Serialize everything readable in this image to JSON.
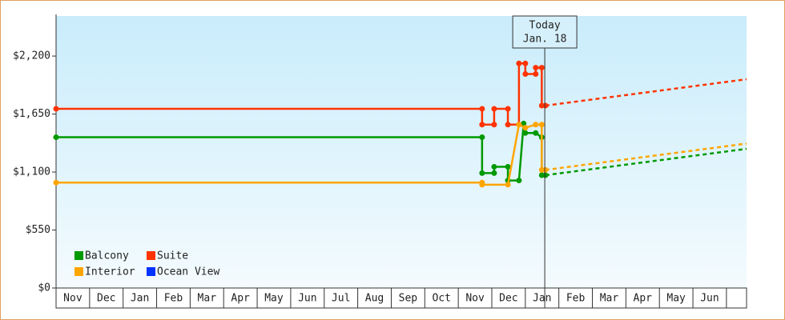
{
  "chart_data": {
    "type": "line",
    "ylim": [
      0,
      2580
    ],
    "yticks": [
      {
        "value": 0,
        "label": "$0"
      },
      {
        "value": 550,
        "label": "$550"
      },
      {
        "value": 1100,
        "label": "$1,100"
      },
      {
        "value": 1650,
        "label": "$1,650"
      },
      {
        "value": 2200,
        "label": "$2,200"
      }
    ],
    "xlim": [
      0,
      20.6
    ],
    "xticks": [
      {
        "value": 0.5,
        "label": "Nov"
      },
      {
        "value": 1.5,
        "label": "Dec"
      },
      {
        "value": 2.5,
        "label": "Jan"
      },
      {
        "value": 3.5,
        "label": "Feb"
      },
      {
        "value": 4.5,
        "label": "Mar"
      },
      {
        "value": 5.5,
        "label": "Apr"
      },
      {
        "value": 6.5,
        "label": "May"
      },
      {
        "value": 7.5,
        "label": "Jun"
      },
      {
        "value": 8.5,
        "label": "Jul"
      },
      {
        "value": 9.5,
        "label": "Aug"
      },
      {
        "value": 10.5,
        "label": "Sep"
      },
      {
        "value": 11.5,
        "label": "Oct"
      },
      {
        "value": 12.5,
        "label": "Nov"
      },
      {
        "value": 13.5,
        "label": "Dec"
      },
      {
        "value": 14.5,
        "label": "Jan"
      },
      {
        "value": 15.5,
        "label": "Feb"
      },
      {
        "value": 16.5,
        "label": "Mar"
      },
      {
        "value": 17.5,
        "label": "Apr"
      },
      {
        "value": 18.5,
        "label": "May"
      },
      {
        "value": 19.5,
        "label": "Jun"
      }
    ],
    "today": {
      "x": 14.58,
      "label": [
        "Today",
        "Jan. 18"
      ]
    },
    "series": [
      {
        "name": "Balcony",
        "color": "#009900",
        "x": [
          0,
          12.71,
          12.71,
          13.07,
          13.07,
          13.48,
          13.48,
          13.81,
          13.95,
          14.0,
          14.31,
          14.49,
          14.49,
          14.6
        ],
        "values": [
          1430,
          1430,
          1090,
          1090,
          1150,
          1150,
          1020,
          1020,
          1560,
          1470,
          1470,
          1430,
          1070,
          1070
        ],
        "forecast_x": [
          14.6,
          20.6
        ],
        "forecast_values": [
          1070,
          1320
        ]
      },
      {
        "name": "Suite",
        "color": "#ff3300",
        "x": [
          0,
          12.71,
          12.71,
          13.07,
          13.07,
          13.48,
          13.48,
          13.81,
          13.81,
          14.0,
          14.0,
          14.31,
          14.31,
          14.49,
          14.49,
          14.6
        ],
        "values": [
          1700,
          1700,
          1550,
          1550,
          1700,
          1700,
          1550,
          1550,
          2130,
          2130,
          2030,
          2030,
          2090,
          2090,
          1730,
          1730
        ],
        "forecast_x": [
          14.6,
          20.6
        ],
        "forecast_values": [
          1730,
          1980
        ]
      },
      {
        "name": "Interior",
        "color": "#ffa500",
        "x": [
          0,
          12.71,
          12.71,
          13.48,
          13.81,
          14.0,
          14.31,
          14.49,
          14.49,
          14.6
        ],
        "values": [
          1000,
          1000,
          980,
          980,
          1550,
          1520,
          1550,
          1550,
          1120,
          1120
        ],
        "forecast_x": [
          14.6,
          20.6
        ],
        "forecast_values": [
          1120,
          1370
        ]
      },
      {
        "name": "Ocean View",
        "color": "#0033ff",
        "x": [],
        "values": [],
        "forecast_x": [],
        "forecast_values": []
      }
    ]
  }
}
